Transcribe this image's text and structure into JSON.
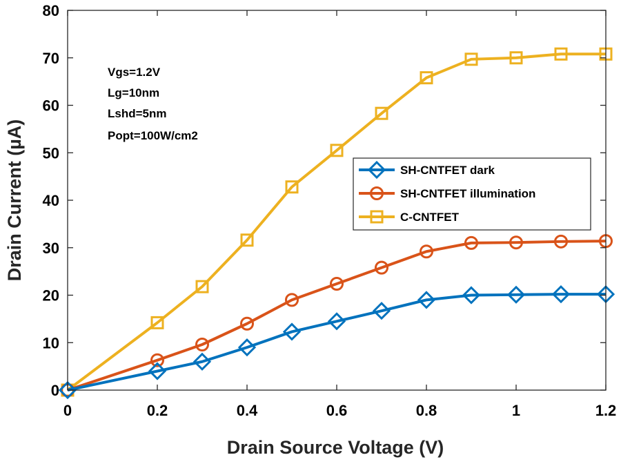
{
  "chart_data": {
    "type": "line",
    "title": "",
    "xlabel": "Drain Source Voltage  (V)",
    "ylabel": "Drain Current  (µA)",
    "xlim": [
      0,
      1.2
    ],
    "ylim": [
      0,
      80
    ],
    "x": [
      0,
      0.2,
      0.3,
      0.4,
      0.5,
      0.6,
      0.7,
      0.8,
      0.9,
      1.0,
      1.1,
      1.2
    ],
    "x_ticks": [
      0,
      0.2,
      0.4,
      0.6,
      0.8,
      1,
      1.2
    ],
    "x_tick_labels": [
      "0",
      "0.2",
      "0.4",
      "0.6",
      "0.8",
      "1",
      "1.2"
    ],
    "y_ticks": [
      0,
      10,
      20,
      30,
      40,
      50,
      60,
      70,
      80
    ],
    "y_tick_labels": [
      "0",
      "10",
      "20",
      "30",
      "40",
      "50",
      "60",
      "70",
      "80"
    ],
    "grid": false,
    "legend_position": "center-right",
    "series": [
      {
        "name": "SH-CNTFET dark",
        "color": "#0072BD",
        "marker": "diamond",
        "values": [
          0,
          4,
          6,
          9,
          12.3,
          14.5,
          16.7,
          19,
          20,
          20.1,
          20.2,
          20.2
        ]
      },
      {
        "name": "SH-CNTFET illumination",
        "color": "#D95319",
        "marker": "circle",
        "values": [
          0,
          6.3,
          9.6,
          14,
          19,
          22.4,
          25.8,
          29.2,
          31,
          31.1,
          31.3,
          31.4
        ]
      },
      {
        "name": "C-CNTFET",
        "color": "#EDB120",
        "marker": "square",
        "values": [
          0,
          14.2,
          21.8,
          31.6,
          42.8,
          50.5,
          58.3,
          65.8,
          69.7,
          70,
          70.8,
          70.8
        ]
      }
    ],
    "annotations": [
      "Vgs=1.2V",
      "Lg=10nm",
      "Lshd=5nm",
      "Popt=100W/cm2"
    ]
  }
}
